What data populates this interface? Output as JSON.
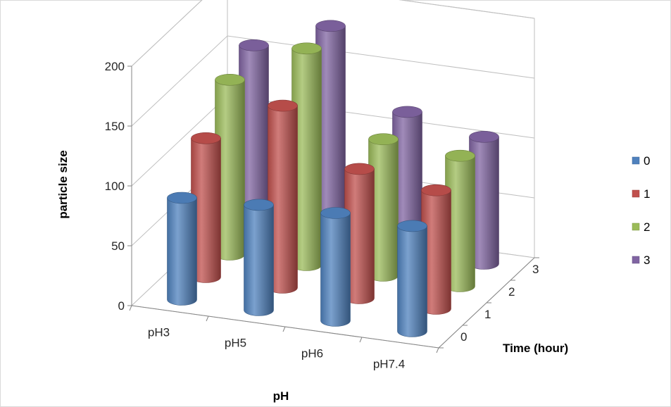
{
  "chart_data": {
    "type": "bar",
    "variant": "3d-cylinder",
    "title": "",
    "xlabel": "pH",
    "ylabel": "particle size",
    "zlabel": "Time (hour)",
    "categories": [
      "pH3",
      "pH5",
      "pH6",
      "pH7.4"
    ],
    "ylim": [
      0,
      200
    ],
    "yticks": [
      "0",
      "50",
      "100",
      "150",
      "200"
    ],
    "zticks": [
      "0",
      "1",
      "2",
      "3"
    ],
    "grid": true,
    "legend_position": "right",
    "series": [
      {
        "name": "0",
        "color": "#4f81bd",
        "values": [
          85,
          88,
          90,
          88
        ]
      },
      {
        "name": "1",
        "color": "#c0504d",
        "values": [
          116,
          152,
          108,
          99
        ]
      },
      {
        "name": "2",
        "color": "#9bbb59",
        "values": [
          146,
          181,
          114,
          109
        ]
      },
      {
        "name": "3",
        "color": "#8064a2",
        "values": [
          156,
          181,
          118,
          106
        ]
      }
    ]
  }
}
